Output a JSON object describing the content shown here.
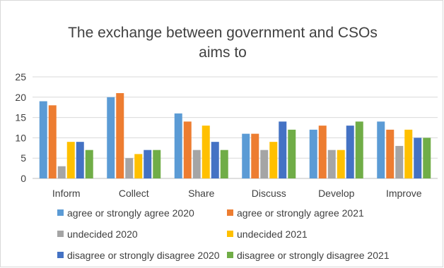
{
  "chart_data": {
    "type": "bar",
    "title_lines": [
      "The exchange between government and CSOs",
      "aims to"
    ],
    "xlabel": "",
    "ylabel": "",
    "ylim": [
      0,
      25
    ],
    "yticks": [
      0,
      5,
      10,
      15,
      20,
      25
    ],
    "grid": true,
    "legend_position": "bottom",
    "categories": [
      "Inform",
      "Collect",
      "Share",
      "Discuss",
      "Develop",
      "Improve"
    ],
    "series": [
      {
        "name": "agree or strongly agree 2020",
        "color": "#5b9bd5",
        "values": [
          19,
          20,
          16,
          11,
          12,
          14
        ]
      },
      {
        "name": "agree or strongly agree 2021",
        "color": "#ed7d31",
        "values": [
          18,
          21,
          14,
          11,
          13,
          12
        ]
      },
      {
        "name": "undecided 2020",
        "color": "#a5a5a5",
        "values": [
          3,
          5,
          7,
          7,
          7,
          8
        ]
      },
      {
        "name": "undecided 2021",
        "color": "#ffc000",
        "values": [
          9,
          6,
          13,
          9,
          7,
          12
        ]
      },
      {
        "name": "disagree or strongly disagree 2020",
        "color": "#4472c4",
        "values": [
          9,
          7,
          9,
          14,
          13,
          10
        ]
      },
      {
        "name": "disagree or strongly disagree 2021",
        "color": "#70ad47",
        "values": [
          7,
          7,
          7,
          12,
          14,
          10
        ]
      }
    ]
  }
}
